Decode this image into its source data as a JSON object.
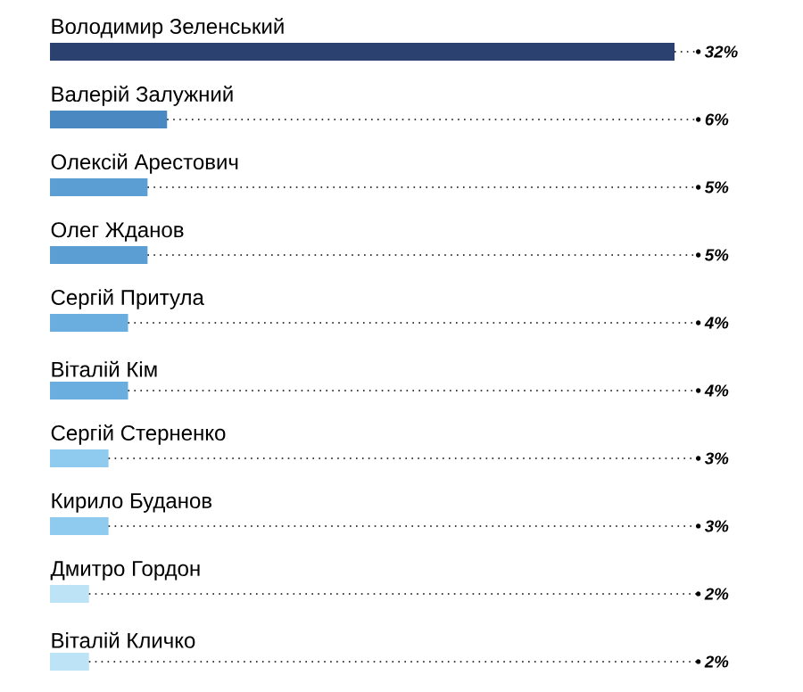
{
  "chart_data": {
    "type": "bar",
    "orientation": "horizontal",
    "categories": [
      "Володимир Зеленський",
      "Валерій Залужний",
      "Олексій Арестович",
      "Олег Жданов",
      "Сергій Притула",
      "Віталій Кім",
      "Сергій Стерненко",
      "Кирило Буданов",
      "Дмитро Гордон",
      "Віталій Кличко"
    ],
    "values": [
      32,
      6,
      5,
      5,
      4,
      4,
      3,
      3,
      2,
      2
    ],
    "value_labels": [
      "32%",
      "6%",
      "5%",
      "5%",
      "4%",
      "4%",
      "3%",
      "3%",
      "2%",
      "2%"
    ],
    "colors": [
      "#2b4170",
      "#4a88c2",
      "#5b9ed4",
      "#5b9ed4",
      "#6aaee0",
      "#6aaee0",
      "#8ecbee",
      "#8ecbee",
      "#bde3f7",
      "#bde3f7"
    ]
  }
}
